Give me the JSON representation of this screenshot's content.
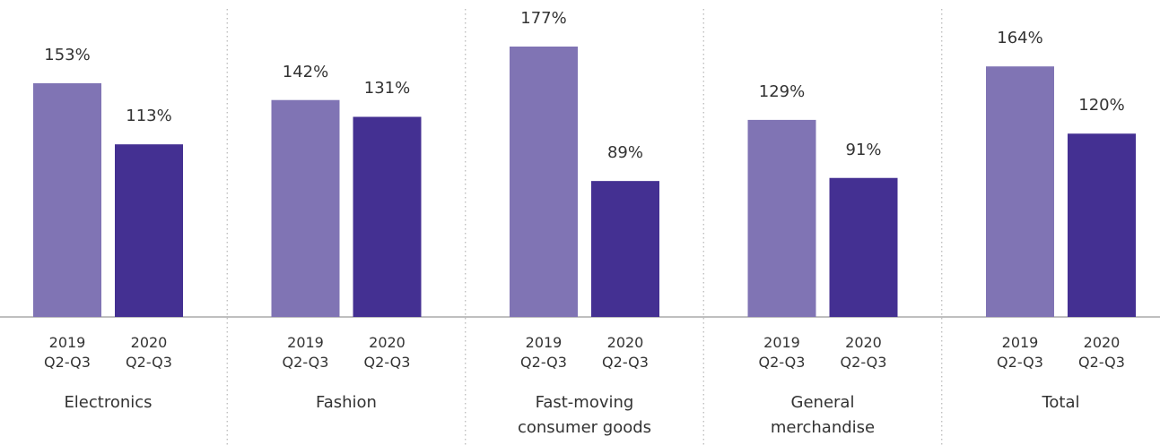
{
  "chart_data": {
    "type": "bar",
    "categories": [
      "Electronics",
      "Fashion",
      "Fast-moving consumer goods",
      "General merchandise",
      "Total"
    ],
    "series": [
      {
        "name": "2019 Q2-Q3",
        "color": "#8074b4",
        "values": [
          153,
          142,
          177,
          129,
          164
        ],
        "value_labels": [
          "153%",
          "142%",
          "177%",
          "129%",
          "164%"
        ]
      },
      {
        "name": "2020 Q2-Q3",
        "color": "#443092",
        "values": [
          113,
          131,
          89,
          91,
          120
        ],
        "value_labels": [
          "113%",
          "131%",
          "89%",
          "91%",
          "120%"
        ]
      }
    ]
  }
}
